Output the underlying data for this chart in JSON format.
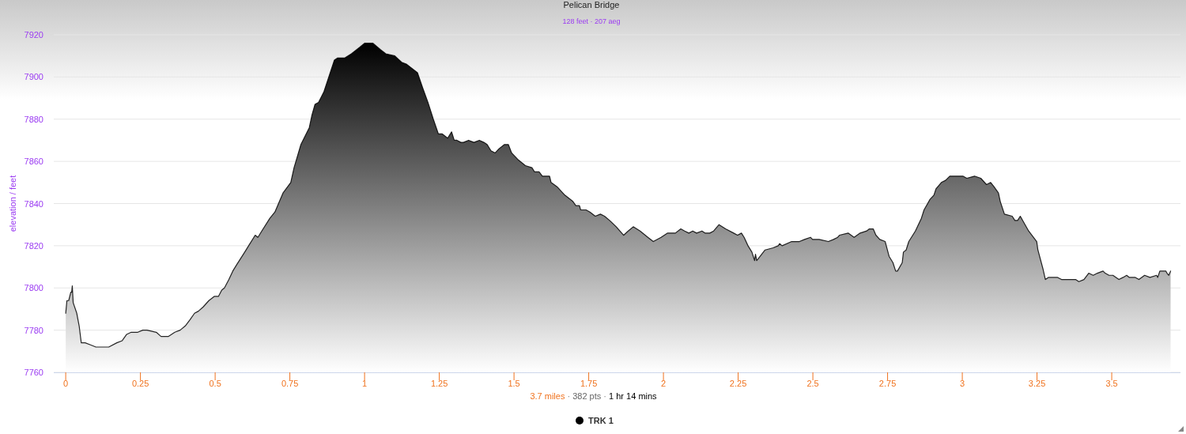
{
  "chart_data": {
    "type": "area",
    "title": "Pelican Bridge",
    "subtitle": "128 feet · 207 aeg",
    "xlabel": "3.7 miles · 382 pts · 1 hr 14 mins",
    "ylabel": "elevation / feet",
    "xlim": [
      -0.04,
      3.73
    ],
    "ylim": [
      7760,
      7920
    ],
    "xticks": [
      0,
      0.25,
      0.5,
      0.75,
      1,
      1.25,
      1.5,
      1.75,
      2,
      2.25,
      2.5,
      2.75,
      3,
      3.25,
      3.5
    ],
    "yticks": [
      7760,
      7780,
      7800,
      7820,
      7840,
      7860,
      7880,
      7900,
      7920
    ],
    "grid": "y",
    "legend": "bottom",
    "x": [
      0,
      0.004,
      0.01,
      0.017,
      0.02,
      0.022,
      0.025,
      0.037,
      0.045,
      0.052,
      0.065,
      0.083,
      0.101,
      0.144,
      0.171,
      0.189,
      0.204,
      0.219,
      0.241,
      0.258,
      0.272,
      0.303,
      0.319,
      0.343,
      0.365,
      0.383,
      0.4,
      0.416,
      0.431,
      0.444,
      0.46,
      0.479,
      0.497,
      0.511,
      0.522,
      0.531,
      0.546,
      0.559,
      0.572,
      0.599,
      0.612,
      0.634,
      0.643,
      0.656,
      0.683,
      0.7,
      0.727,
      0.753,
      0.764,
      0.787,
      0.815,
      0.824,
      0.834,
      0.846,
      0.864,
      0.899,
      0.91,
      0.934,
      0.956,
      0.983,
      1.0,
      1.028,
      1.053,
      1.071,
      1.101,
      1.124,
      1.141,
      1.177,
      1.194,
      1.212,
      1.23,
      1.247,
      1.26,
      1.278,
      1.291,
      1.3,
      1.309,
      1.322,
      1.331,
      1.348,
      1.366,
      1.384,
      1.399,
      1.41,
      1.423,
      1.437,
      1.45,
      1.468,
      1.481,
      1.492,
      1.512,
      1.538,
      1.56,
      1.569,
      1.584,
      1.595,
      1.608,
      1.619,
      1.624,
      1.644,
      1.67,
      1.697,
      1.707,
      1.719,
      1.723,
      1.741,
      1.754,
      1.772,
      1.789,
      1.803,
      1.82,
      1.842,
      1.867,
      1.882,
      1.899,
      1.922,
      1.948,
      1.966,
      1.992,
      2.014,
      2.032,
      2.04,
      2.058,
      2.071,
      2.085,
      2.098,
      2.111,
      2.129,
      2.139,
      2.155,
      2.168,
      2.186,
      2.208,
      2.235,
      2.248,
      2.261,
      2.27,
      2.283,
      2.296,
      2.305,
      2.308,
      2.312,
      2.318,
      2.34,
      2.367,
      2.384,
      2.389,
      2.397,
      2.429,
      2.455,
      2.472,
      2.492,
      2.499,
      2.521,
      2.552,
      2.569,
      2.583,
      2.589,
      2.618,
      2.638,
      2.658,
      2.68,
      2.689,
      2.702,
      2.711,
      2.724,
      2.742,
      2.755,
      2.768,
      2.777,
      2.783,
      2.799,
      2.803,
      2.812,
      2.821,
      2.843,
      2.863,
      2.872,
      2.892,
      2.905,
      2.912,
      2.93,
      2.944,
      2.958,
      2.975,
      3.002,
      3.015,
      3.041,
      3.062,
      3.081,
      3.095,
      3.106,
      3.121,
      3.127,
      3.141,
      3.167,
      3.176,
      3.185,
      3.194,
      3.222,
      3.249,
      3.253,
      3.27,
      3.278,
      3.288,
      3.308,
      3.319,
      3.332,
      3.354,
      3.379,
      3.39,
      3.407,
      3.423,
      3.438,
      3.452,
      3.471,
      3.478,
      3.491,
      3.504,
      3.524,
      3.538,
      3.55,
      3.559,
      3.568,
      3.579,
      3.591,
      3.61,
      3.628,
      3.65,
      3.654,
      3.661,
      3.681,
      3.685,
      3.691,
      3.697
    ],
    "series": [
      {
        "name": "TRK 1",
        "color": "#000000",
        "values": [
          7788,
          7794,
          7794,
          7798,
          7798,
          7801,
          7793,
          7788,
          7782,
          7774,
          7774,
          7773,
          7772,
          7772,
          7774,
          7775,
          7778,
          7779,
          7779,
          7780,
          7780,
          7779,
          7777,
          7777,
          7779,
          7780,
          7782,
          7785,
          7788,
          7789,
          7791,
          7794,
          7796,
          7796,
          7799,
          7800,
          7804,
          7808,
          7811,
          7817,
          7820,
          7825,
          7824,
          7827,
          7833,
          7836,
          7845,
          7850,
          7857,
          7868,
          7876,
          7882,
          7887,
          7888,
          7893,
          7908,
          7909,
          7909,
          7911,
          7914,
          7916,
          7916,
          7913,
          7911,
          7910,
          7907,
          7906,
          7902,
          7895,
          7888,
          7880,
          7873,
          7873,
          7871,
          7874,
          7870,
          7870,
          7869,
          7869,
          7870,
          7869,
          7870,
          7869,
          7868,
          7865,
          7864,
          7866,
          7868,
          7868,
          7864,
          7861,
          7858,
          7857,
          7855,
          7855,
          7853,
          7853,
          7853,
          7850,
          7848,
          7844,
          7841,
          7839,
          7839,
          7837,
          7837,
          7836,
          7834,
          7835,
          7834,
          7832,
          7829,
          7825,
          7827,
          7829,
          7827,
          7824,
          7822,
          7824,
          7826,
          7826,
          7826,
          7828,
          7827,
          7826,
          7827,
          7826,
          7827,
          7826,
          7826,
          7827,
          7830,
          7828,
          7826,
          7825,
          7826,
          7824,
          7820,
          7817,
          7813,
          7816,
          7813,
          7814,
          7818,
          7819,
          7820,
          7821,
          7820,
          7822,
          7822,
          7823,
          7824,
          7823,
          7823,
          7822,
          7823,
          7824,
          7825,
          7826,
          7824,
          7826,
          7827,
          7828,
          7828,
          7825,
          7823,
          7822,
          7815,
          7812,
          7808,
          7808,
          7812,
          7817,
          7818,
          7822,
          7827,
          7833,
          7837,
          7842,
          7844,
          7847,
          7850,
          7851,
          7853,
          7853,
          7853,
          7852,
          7853,
          7852,
          7849,
          7850,
          7848,
          7845,
          7841,
          7835,
          7834,
          7832,
          7832,
          7834,
          7827,
          7822,
          7818,
          7809,
          7804,
          7805,
          7805,
          7805,
          7804,
          7804,
          7804,
          7803,
          7804,
          7807,
          7806,
          7807,
          7808,
          7807,
          7806,
          7806,
          7804,
          7805,
          7806,
          7805,
          7805,
          7805,
          7804,
          7806,
          7805,
          7806,
          7805,
          7808,
          7808,
          7807,
          7806,
          7808
        ]
      }
    ]
  }
}
